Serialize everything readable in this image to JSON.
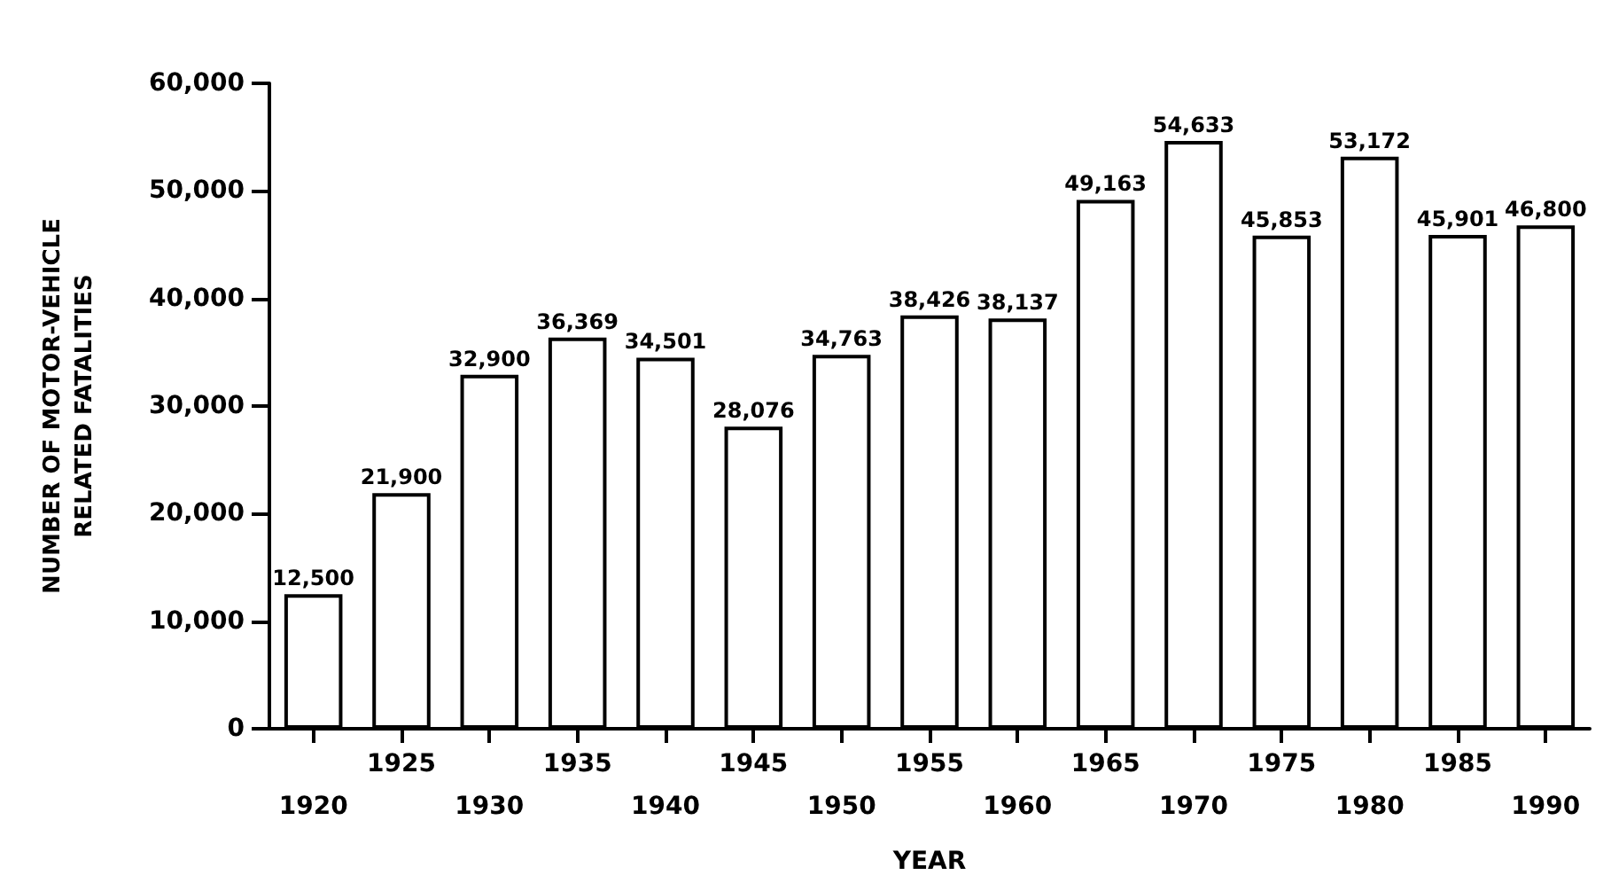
{
  "chart_data": {
    "type": "bar",
    "xlabel": "YEAR",
    "ylabel": "NUMBER OF MOTOR-VEHICLE\nRELATED FATALITIES",
    "categories": [
      "1920",
      "1925",
      "1930",
      "1935",
      "1940",
      "1945",
      "1950",
      "1955",
      "1960",
      "1965",
      "1970",
      "1975",
      "1980",
      "1985",
      "1990"
    ],
    "values": [
      12500,
      21900,
      32900,
      36369,
      34501,
      28076,
      34763,
      38426,
      38137,
      49163,
      54633,
      45853,
      53172,
      45901,
      46800
    ],
    "value_labels": [
      "12,500",
      "21,900",
      "32,900",
      "36,369",
      "34,501",
      "28,076",
      "34,763",
      "38,426",
      "38,137",
      "49,163",
      "54,633",
      "45,853",
      "53,172",
      "45,901",
      "46,800"
    ],
    "color": "#ffffff",
    "ylim": [
      0,
      60000
    ],
    "yticks": [
      0,
      {
        "value": 10000,
        "label": "10,000"
      },
      {
        "value": 20000,
        "label": "20,000"
      },
      {
        "value": 30000,
        "label": "30,000"
      },
      {
        "value": 40000,
        "label": "40,000"
      },
      {
        "value": 50000,
        "label": "50,000"
      },
      {
        "value": 60000,
        "label": "60,000"
      }
    ],
    "grid": false
  }
}
